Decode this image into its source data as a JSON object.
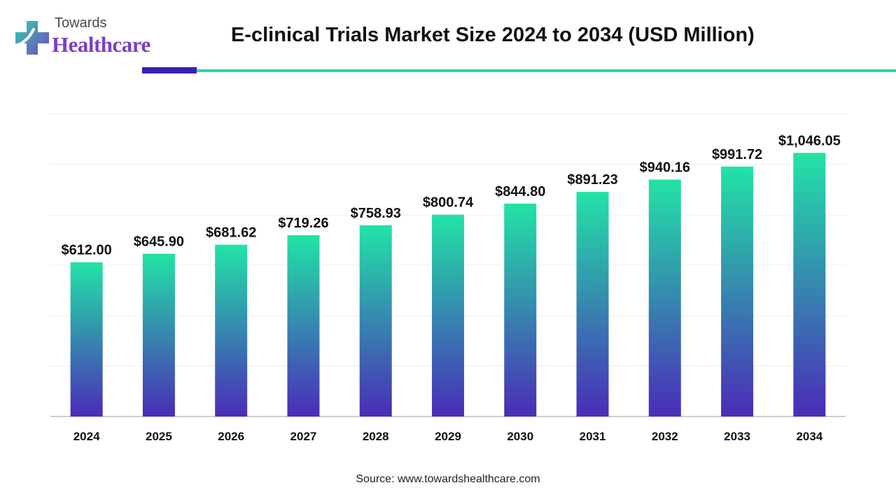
{
  "brand": {
    "line1": "Towards",
    "line2": "Healthcare",
    "colors": {
      "purple": "#7b3fc4",
      "teal": "#2ed6a7",
      "dark": "#3a1fb0"
    }
  },
  "title": "E-clinical Trials Market Size 2024 to 2034 (USD Million)",
  "source": "Source: www.towardshealthcare.com",
  "chart_data": {
    "type": "bar",
    "categories": [
      "2024",
      "2025",
      "2026",
      "2027",
      "2028",
      "2029",
      "2030",
      "2031",
      "2032",
      "2033",
      "2034"
    ],
    "values": [
      612.0,
      645.9,
      681.62,
      719.26,
      758.93,
      800.74,
      844.8,
      891.23,
      940.16,
      991.72,
      1046.05
    ],
    "labels": [
      "$612.00",
      "$645.90",
      "$681.62",
      "$719.26",
      "$758.93",
      "$800.74",
      "$844.80",
      "$891.23",
      "$940.16",
      "$991.72",
      "$1,046.05"
    ],
    "ylim": [
      0,
      1200
    ],
    "grid": true,
    "legend": "none",
    "xlabel": "",
    "ylabel": "",
    "colors": {
      "bar_top": "#22e3a6",
      "bar_bottom": "#4a2cb8",
      "grid": "#ececec",
      "axis": "#bdbdbd"
    }
  }
}
